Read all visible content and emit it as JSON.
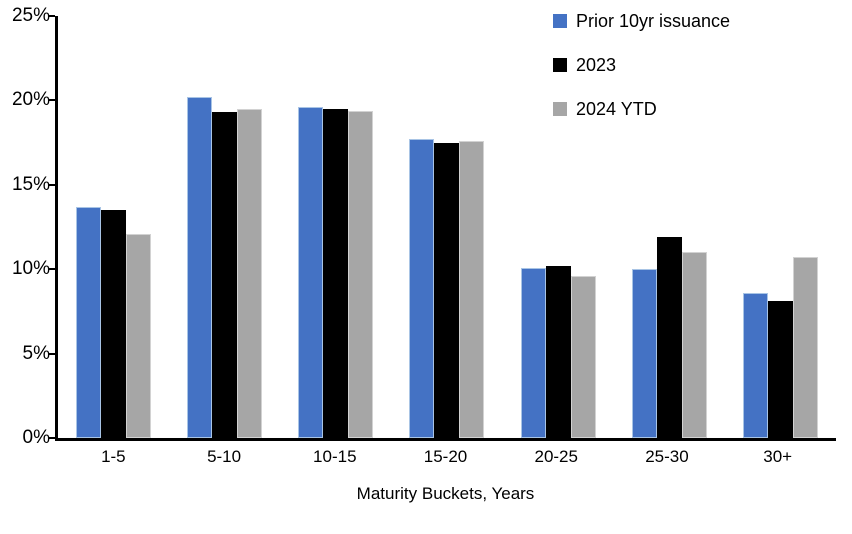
{
  "chart_data": {
    "type": "bar",
    "title": "",
    "categories": [
      "1-5",
      "5-10",
      "10-15",
      "15-20",
      "20-25",
      "25-30",
      "30+"
    ],
    "series": [
      {
        "name": "Prior 10yr issuance",
        "color": "#4472C4",
        "border_color": "#A8C4E5",
        "values": [
          13.7,
          20.2,
          19.6,
          17.7,
          10.1,
          10.0,
          8.6
        ]
      },
      {
        "name": "2023",
        "color": "#000000",
        "border_color": "#000000",
        "values": [
          13.5,
          19.3,
          19.5,
          17.5,
          10.2,
          11.9,
          8.1
        ]
      },
      {
        "name": "2024 YTD",
        "color": "#A6A6A6",
        "border_color": "#D2D2D2",
        "values": [
          12.1,
          19.5,
          19.4,
          17.6,
          9.6,
          11.0,
          10.7
        ]
      }
    ],
    "xlabel": "Maturity Buckets, Years",
    "ylabel": "",
    "ylim": [
      0,
      25
    ],
    "y_tick_labels": [
      "0%",
      "5%",
      "10%",
      "15%",
      "20%",
      "25%"
    ],
    "y_tick_values": [
      0,
      5,
      10,
      15,
      20,
      25
    ],
    "grid": false,
    "legend_position": "top-right",
    "axis_color": "#000000",
    "background_color": "#FFFFFF"
  }
}
